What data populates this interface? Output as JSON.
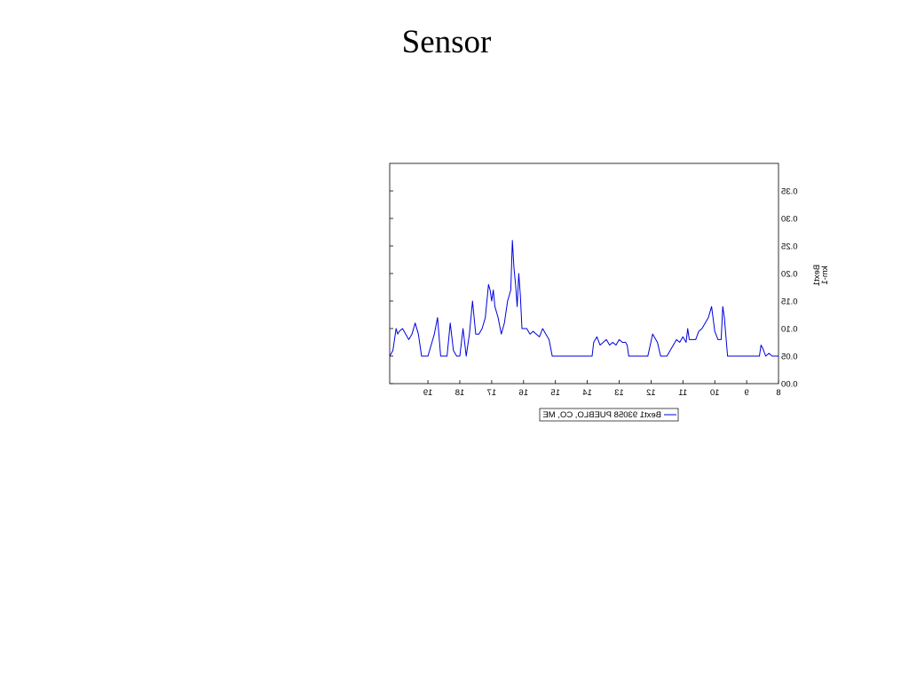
{
  "slide": {
    "title": "Sensor"
  },
  "chart_data": {
    "type": "line",
    "mirrored": true,
    "xlabel": "",
    "ylabel": [
      "Bext1",
      "km-1"
    ],
    "x_ticks": [
      "8",
      "9",
      "10",
      "11",
      "12",
      "13",
      "14",
      "15",
      "16",
      "17",
      "18",
      "19"
    ],
    "y_ticks": [
      "0.00",
      "0.05",
      "0.10",
      "0.15",
      "0.20",
      "0.25",
      "0.30",
      "0.35"
    ],
    "xlim": [
      8,
      20.2
    ],
    "ylim": [
      0,
      0.4
    ],
    "grid": false,
    "legend_position": "below",
    "series": [
      {
        "name": "Bext1 93058 PUEBLO, CO, ME",
        "color": "#0000dd",
        "x": [
          8.0,
          8.1,
          8.2,
          8.3,
          8.4,
          8.5,
          8.55,
          8.6,
          8.7,
          8.8,
          8.9,
          9.0,
          9.2,
          9.4,
          9.6,
          9.7,
          9.75,
          9.8,
          9.9,
          10.0,
          10.1,
          10.2,
          10.3,
          10.4,
          10.5,
          10.6,
          10.7,
          10.8,
          10.85,
          10.9,
          11.0,
          11.1,
          11.2,
          11.3,
          11.4,
          11.5,
          11.6,
          11.7,
          11.8,
          11.95,
          12.1,
          12.3,
          12.5,
          12.7,
          12.75,
          12.8,
          12.9,
          13.0,
          13.1,
          13.2,
          13.3,
          13.4,
          13.5,
          13.6,
          13.7,
          13.8,
          13.85,
          14.0,
          14.2,
          14.4,
          14.6,
          14.9,
          15.1,
          15.2,
          15.3,
          15.4,
          15.5,
          15.6,
          15.7,
          15.8,
          15.9,
          16.0,
          16.05,
          16.1,
          16.15,
          16.2,
          16.25,
          16.3,
          16.35,
          16.4,
          16.5,
          16.6,
          16.7,
          16.8,
          16.9,
          16.95,
          17.0,
          17.05,
          17.1,
          17.2,
          17.3,
          17.4,
          17.5,
          17.6,
          17.7,
          17.8,
          17.9,
          18.0,
          18.1,
          18.2,
          18.3,
          18.4,
          18.5,
          18.6,
          18.7,
          18.8,
          18.9,
          19.0,
          19.1,
          19.2,
          19.3,
          19.4,
          19.5,
          19.6,
          19.7,
          19.8,
          19.9,
          19.95,
          20.0,
          20.1,
          20.2
        ],
        "y": [
          0.05,
          0.05,
          0.05,
          0.055,
          0.05,
          0.065,
          0.07,
          0.05,
          0.05,
          0.05,
          0.05,
          0.05,
          0.05,
          0.05,
          0.05,
          0.12,
          0.14,
          0.08,
          0.08,
          0.095,
          0.14,
          0.12,
          0.11,
          0.1,
          0.095,
          0.08,
          0.08,
          0.08,
          0.1,
          0.075,
          0.085,
          0.075,
          0.08,
          0.07,
          0.06,
          0.05,
          0.05,
          0.05,
          0.075,
          0.09,
          0.05,
          0.05,
          0.05,
          0.05,
          0.07,
          0.075,
          0.075,
          0.08,
          0.07,
          0.075,
          0.07,
          0.08,
          0.075,
          0.07,
          0.085,
          0.075,
          0.05,
          0.05,
          0.05,
          0.05,
          0.05,
          0.05,
          0.05,
          0.08,
          0.09,
          0.1,
          0.085,
          0.09,
          0.095,
          0.09,
          0.1,
          0.1,
          0.1,
          0.16,
          0.2,
          0.14,
          0.18,
          0.21,
          0.26,
          0.17,
          0.15,
          0.11,
          0.09,
          0.12,
          0.14,
          0.17,
          0.15,
          0.17,
          0.18,
          0.12,
          0.1,
          0.09,
          0.09,
          0.15,
          0.09,
          0.05,
          0.1,
          0.05,
          0.05,
          0.06,
          0.11,
          0.05,
          0.05,
          0.05,
          0.12,
          0.09,
          0.07,
          0.05,
          0.05,
          0.05,
          0.09,
          0.11,
          0.09,
          0.08,
          0.09,
          0.1,
          0.095,
          0.09,
          0.1,
          0.06,
          0.05
        ]
      }
    ]
  }
}
